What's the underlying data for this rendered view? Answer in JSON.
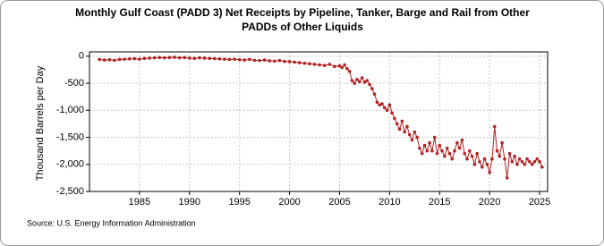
{
  "chart_data": {
    "type": "line",
    "title": [
      "Monthly Gulf Coast (PADD 3) Net Receipts by Pipeline, Tanker, Barge and Rail from Other",
      "PADDs of Other Liquids"
    ],
    "y_label": "Thousand Barrels per Day",
    "source": "Source: U.S. Energy Information Administration",
    "xlim": [
      1980,
      2025.8
    ],
    "xticks": [
      1985,
      1990,
      1995,
      2000,
      2005,
      2010,
      2015,
      2020,
      2025
    ],
    "ylim": [
      -2500,
      80
    ],
    "yticks": [
      0,
      -500,
      {
        "value": -1000,
        "label": "-1,000"
      },
      {
        "value": -1500,
        "label": "-1,500"
      },
      {
        "value": -2000,
        "label": "-2,000"
      },
      {
        "value": -2500,
        "label": "-2,500"
      }
    ],
    "grid": true,
    "series": [
      {
        "color": "#b22222",
        "x": [
          1981,
          1981.5,
          1982,
          1982.5,
          1983,
          1983.5,
          1984,
          1984.5,
          1985,
          1985.5,
          1986,
          1986.5,
          1987,
          1987.5,
          1988,
          1988.5,
          1989,
          1989.5,
          1990,
          1990.5,
          1991,
          1991.5,
          1992,
          1992.5,
          1993,
          1993.5,
          1994,
          1994.5,
          1995,
          1995.5,
          1996,
          1996.5,
          1997,
          1997.5,
          1998,
          1998.5,
          1999,
          1999.5,
          2000,
          2000.5,
          2001,
          2001.5,
          2002,
          2002.5,
          2003,
          2003.5,
          2004,
          2004.5,
          2005,
          2005.25,
          2005.5,
          2005.75,
          2006,
          2006.25,
          2006.5,
          2006.75,
          2007,
          2007.25,
          2007.5,
          2007.75,
          2008,
          2008.25,
          2008.5,
          2008.75,
          2009,
          2009.25,
          2009.5,
          2009.75,
          2010,
          2010.25,
          2010.5,
          2010.75,
          2011,
          2011.25,
          2011.5,
          2011.75,
          2012,
          2012.25,
          2012.5,
          2012.75,
          2013,
          2013.25,
          2013.5,
          2013.75,
          2014,
          2014.25,
          2014.5,
          2014.75,
          2015,
          2015.25,
          2015.5,
          2015.75,
          2016,
          2016.25,
          2016.5,
          2016.75,
          2017,
          2017.25,
          2017.5,
          2017.75,
          2018,
          2018.25,
          2018.5,
          2018.75,
          2019,
          2019.25,
          2019.5,
          2019.75,
          2020,
          2020.25,
          2020.5,
          2020.75,
          2021,
          2021.25,
          2021.5,
          2021.75,
          2022,
          2022.25,
          2022.5,
          2022.75,
          2023,
          2023.25,
          2023.5,
          2023.75,
          2024,
          2024.25,
          2024.5,
          2024.75,
          2025,
          2025.25
        ],
        "values": [
          -60,
          -70,
          -65,
          -75,
          -60,
          -55,
          -50,
          -45,
          -55,
          -40,
          -35,
          -30,
          -25,
          -30,
          -25,
          -20,
          -30,
          -25,
          -35,
          -40,
          -30,
          -35,
          -40,
          -45,
          -50,
          -55,
          -60,
          -55,
          -65,
          -70,
          -60,
          -75,
          -80,
          -70,
          -85,
          -90,
          -80,
          -95,
          -100,
          -110,
          -120,
          -130,
          -140,
          -150,
          -160,
          -170,
          -150,
          -190,
          -180,
          -210,
          -160,
          -230,
          -280,
          -450,
          -500,
          -430,
          -470,
          -400,
          -480,
          -450,
          -520,
          -600,
          -700,
          -850,
          -900,
          -880,
          -950,
          -1000,
          -900,
          -1050,
          -1150,
          -1250,
          -1350,
          -1200,
          -1400,
          -1300,
          -1450,
          -1550,
          -1400,
          -1500,
          -1700,
          -1800,
          -1650,
          -1750,
          -1600,
          -1750,
          -1500,
          -1800,
          -1650,
          -1750,
          -1850,
          -1700,
          -1800,
          -1900,
          -1750,
          -1600,
          -1700,
          -1550,
          -1800,
          -1900,
          -1750,
          -1850,
          -2000,
          -1800,
          -1950,
          -2050,
          -1900,
          -2000,
          -2150,
          -1900,
          -1300,
          -1750,
          -1850,
          -1600,
          -1900,
          -2250,
          -1800,
          -1950,
          -1850,
          -2000,
          -1900,
          -1950,
          -2000,
          -1900,
          -1950,
          -2000,
          -1950,
          -1900,
          -1950,
          -2050
        ]
      }
    ]
  }
}
